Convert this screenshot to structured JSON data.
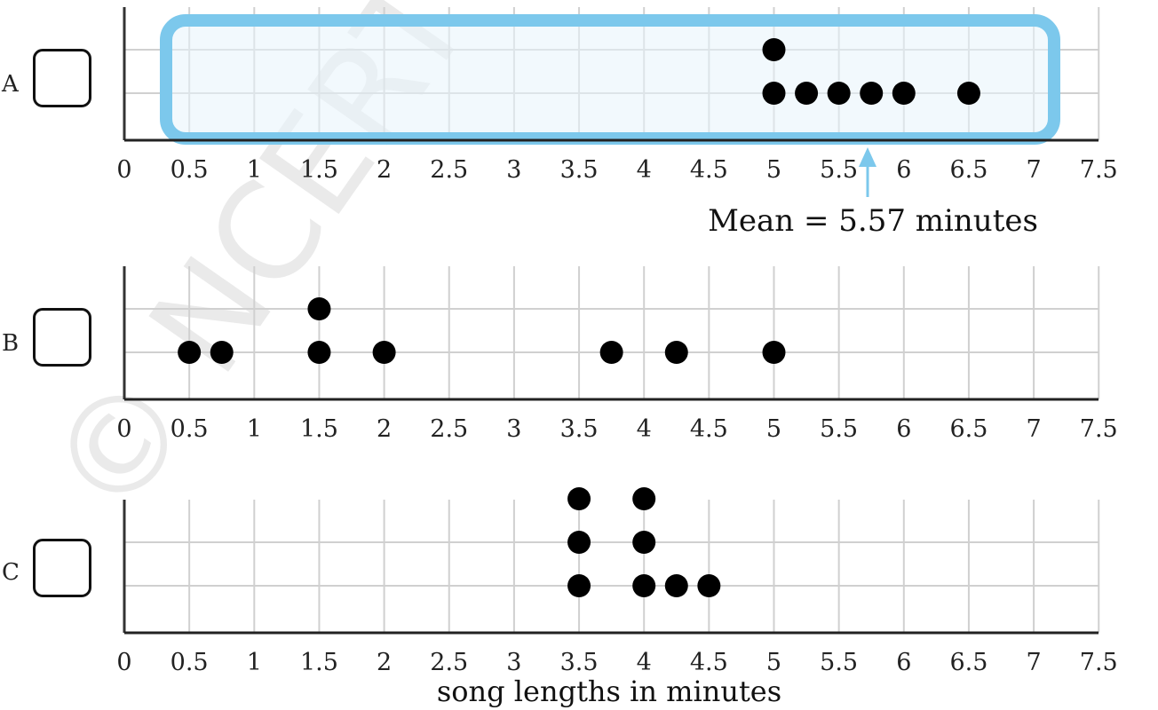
{
  "watermark": "© NCERT to be republished",
  "xaxis_title": "song lengths in minutes",
  "colors": {
    "highlight": "#7cc8ec",
    "highlight_fill": "#e8f4fb",
    "grid": "#d0d0d0",
    "dot": "#000000"
  },
  "chart_data": [
    {
      "type": "scatter",
      "panel": "A",
      "x_ticks": [
        "0",
        "0.5",
        "1",
        "1.5",
        "2",
        "2.5",
        "3",
        "3.5",
        "4",
        "4.5",
        "5",
        "5.5",
        "6",
        "6.5",
        "7",
        "7.5"
      ],
      "xlim": [
        0,
        7.5
      ],
      "points": [
        5,
        5,
        5.25,
        5.5,
        5.75,
        6,
        6.5
      ],
      "annotation": "Mean = 5.57 minutes",
      "highlighted": true
    },
    {
      "type": "scatter",
      "panel": "B",
      "x_ticks": [
        "0",
        "0.5",
        "1",
        "1.5",
        "2",
        "2.5",
        "3",
        "3.5",
        "4",
        "4.5",
        "5",
        "5.5",
        "6",
        "6.5",
        "7",
        "7.5"
      ],
      "xlim": [
        0,
        7.5
      ],
      "points": [
        0.5,
        0.75,
        1.5,
        1.5,
        2,
        3.75,
        4.25,
        5
      ]
    },
    {
      "type": "scatter",
      "panel": "C",
      "x_ticks": [
        "0",
        "0.5",
        "1",
        "1.5",
        "2",
        "2.5",
        "3",
        "3.5",
        "4",
        "4.5",
        "5",
        "5.5",
        "6",
        "6.5",
        "7",
        "7.5"
      ],
      "xlim": [
        0,
        7.5
      ],
      "points": [
        3.5,
        3.5,
        3.5,
        4,
        4,
        4,
        4.25,
        4.5
      ],
      "xlabel": "song lengths in minutes"
    }
  ]
}
